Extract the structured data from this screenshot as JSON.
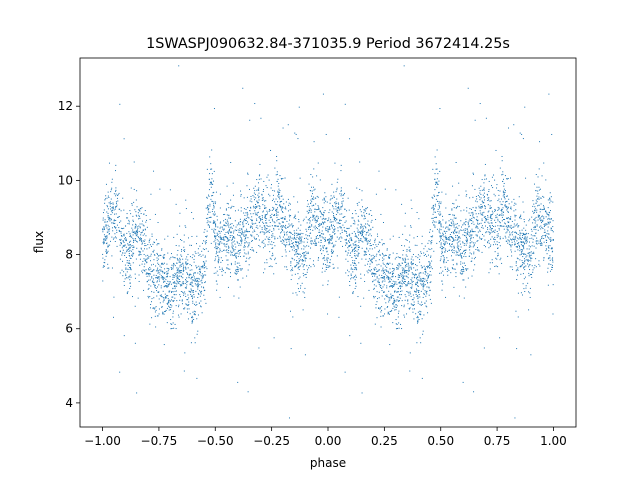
{
  "chart_data": {
    "type": "scatter",
    "title": "1SWASPJ090632.84-371035.9 Period 3672414.25s",
    "xlabel": "phase",
    "ylabel": "flux",
    "xlim": [
      -1.1,
      1.1
    ],
    "ylim": [
      3.35,
      13.3
    ],
    "x_ticks": [
      -1.0,
      -0.75,
      -0.5,
      -0.25,
      0.0,
      0.25,
      0.5,
      0.75,
      1.0
    ],
    "x_tick_labels": [
      "−1.00",
      "−0.75",
      "−0.50",
      "−0.25",
      "0.00",
      "0.25",
      "0.50",
      "0.75",
      "1.00"
    ],
    "y_ticks": [
      4,
      6,
      8,
      10,
      12
    ],
    "y_tick_labels": [
      "4",
      "6",
      "8",
      "10",
      "12"
    ],
    "grid": false,
    "legend": "none",
    "point_color": "#1f77b4",
    "series": [
      {
        "profile_phase": [
          0.0,
          0.03,
          0.06,
          0.09,
          0.12,
          0.15,
          0.18,
          0.21,
          0.24,
          0.27,
          0.3,
          0.33,
          0.36,
          0.39,
          0.42,
          0.45,
          0.48,
          0.51,
          0.54,
          0.57,
          0.6,
          0.63,
          0.66,
          0.69,
          0.72,
          0.75,
          0.78,
          0.81,
          0.84,
          0.87,
          0.9,
          0.93,
          0.96,
          1.0
        ],
        "profile_flux": [
          8.3,
          8.9,
          9.1,
          8.2,
          8.0,
          8.6,
          8.4,
          7.6,
          7.5,
          7.2,
          7.0,
          7.4,
          7.5,
          7.3,
          7.1,
          7.6,
          9.9,
          8.1,
          8.3,
          8.5,
          8.0,
          8.6,
          8.8,
          9.2,
          9.0,
          8.7,
          9.4,
          8.6,
          8.4,
          8.0,
          8.2,
          9.0,
          8.7,
          8.3
        ],
        "scatter_sigma": 0.7
      }
    ]
  }
}
